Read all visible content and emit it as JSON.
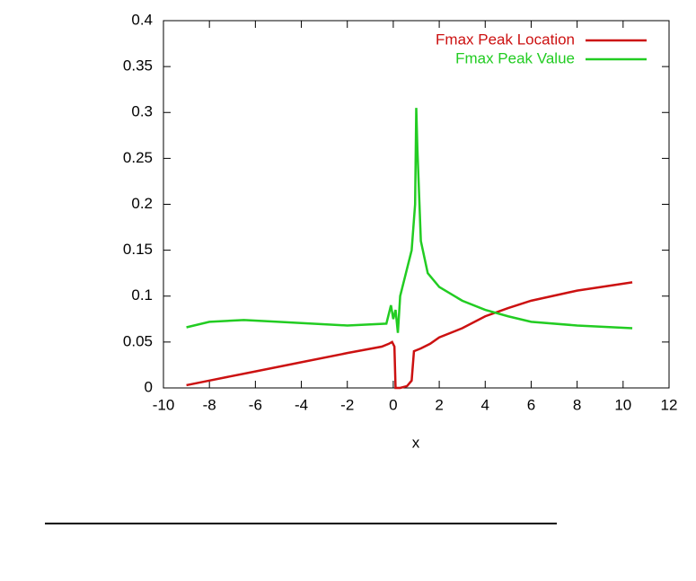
{
  "chart_data": {
    "type": "line",
    "x_label": "x",
    "xlim": [
      -10,
      12
    ],
    "xticks": [
      -10,
      -8,
      -6,
      -4,
      -2,
      0,
      2,
      4,
      6,
      8,
      10,
      12
    ],
    "ylim": [
      0,
      0.4
    ],
    "yticks": [
      0,
      0.05,
      0.1,
      0.15,
      0.2,
      0.25,
      0.3,
      0.35,
      0.4
    ],
    "legend": "top-right",
    "series": [
      {
        "name": "Fmax Peak Location",
        "color": "#cc1111",
        "x": [
          -9,
          -8,
          -6,
          -4,
          -2,
          -0.5,
          -0.2,
          -0.05,
          0.05,
          0.1,
          0.3,
          0.6,
          0.8,
          0.9,
          1.2,
          1.6,
          2,
          3,
          4,
          5,
          6,
          8,
          10.4
        ],
        "values": [
          0.003,
          0.008,
          0.018,
          0.028,
          0.038,
          0.045,
          0.048,
          0.05,
          0.045,
          0.0,
          0.0,
          0.002,
          0.008,
          0.04,
          0.043,
          0.048,
          0.055,
          0.065,
          0.078,
          0.087,
          0.095,
          0.106,
          0.115
        ]
      },
      {
        "name": "Fmax Peak Value",
        "color": "#22cc22",
        "x": [
          -9,
          -8,
          -6.5,
          -5,
          -2,
          -0.3,
          -0.1,
          0,
          0.1,
          0.2,
          0.3,
          0.5,
          0.8,
          0.95,
          1.0,
          1.05,
          1.2,
          1.5,
          2,
          3,
          4,
          5,
          6,
          8,
          10.4
        ],
        "values": [
          0.066,
          0.072,
          0.074,
          0.072,
          0.068,
          0.07,
          0.09,
          0.075,
          0.085,
          0.06,
          0.1,
          0.12,
          0.15,
          0.2,
          0.305,
          0.26,
          0.16,
          0.125,
          0.11,
          0.095,
          0.085,
          0.078,
          0.072,
          0.068,
          0.065
        ]
      }
    ]
  }
}
